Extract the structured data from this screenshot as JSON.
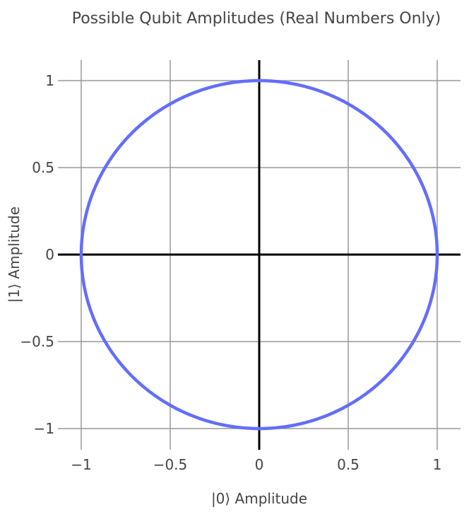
{
  "chart_data": {
    "type": "line",
    "title": "Possible Qubit Amplitudes (Real Numbers Only)",
    "xlabel": "|0⟩ Amplitude",
    "ylabel": "|1⟩ Amplitude",
    "xlim": [
      -1,
      1
    ],
    "ylim": [
      -1,
      1
    ],
    "x_ticks": [
      -1,
      -0.5,
      0,
      0.5,
      1
    ],
    "y_ticks": [
      1,
      0.5,
      0,
      -0.5,
      -1
    ],
    "x_tick_labels": [
      "−1",
      "−0.5",
      "0",
      "0.5",
      "1"
    ],
    "y_tick_labels": [
      "1",
      "0.5",
      "0",
      "−0.5",
      "−1"
    ],
    "grid": true,
    "zero_lines": true,
    "series": [
      {
        "shape": "unit circle",
        "x": [
          1,
          0.866,
          0.5,
          0,
          -0.5,
          -0.866,
          -1,
          -0.866,
          -0.5,
          0,
          0.5,
          0.866,
          1
        ],
        "y": [
          0,
          0.5,
          0.866,
          1,
          0.866,
          0.5,
          0,
          -0.5,
          -0.866,
          -1,
          -0.866,
          -0.5,
          0
        ],
        "color": "#636efa"
      }
    ]
  }
}
